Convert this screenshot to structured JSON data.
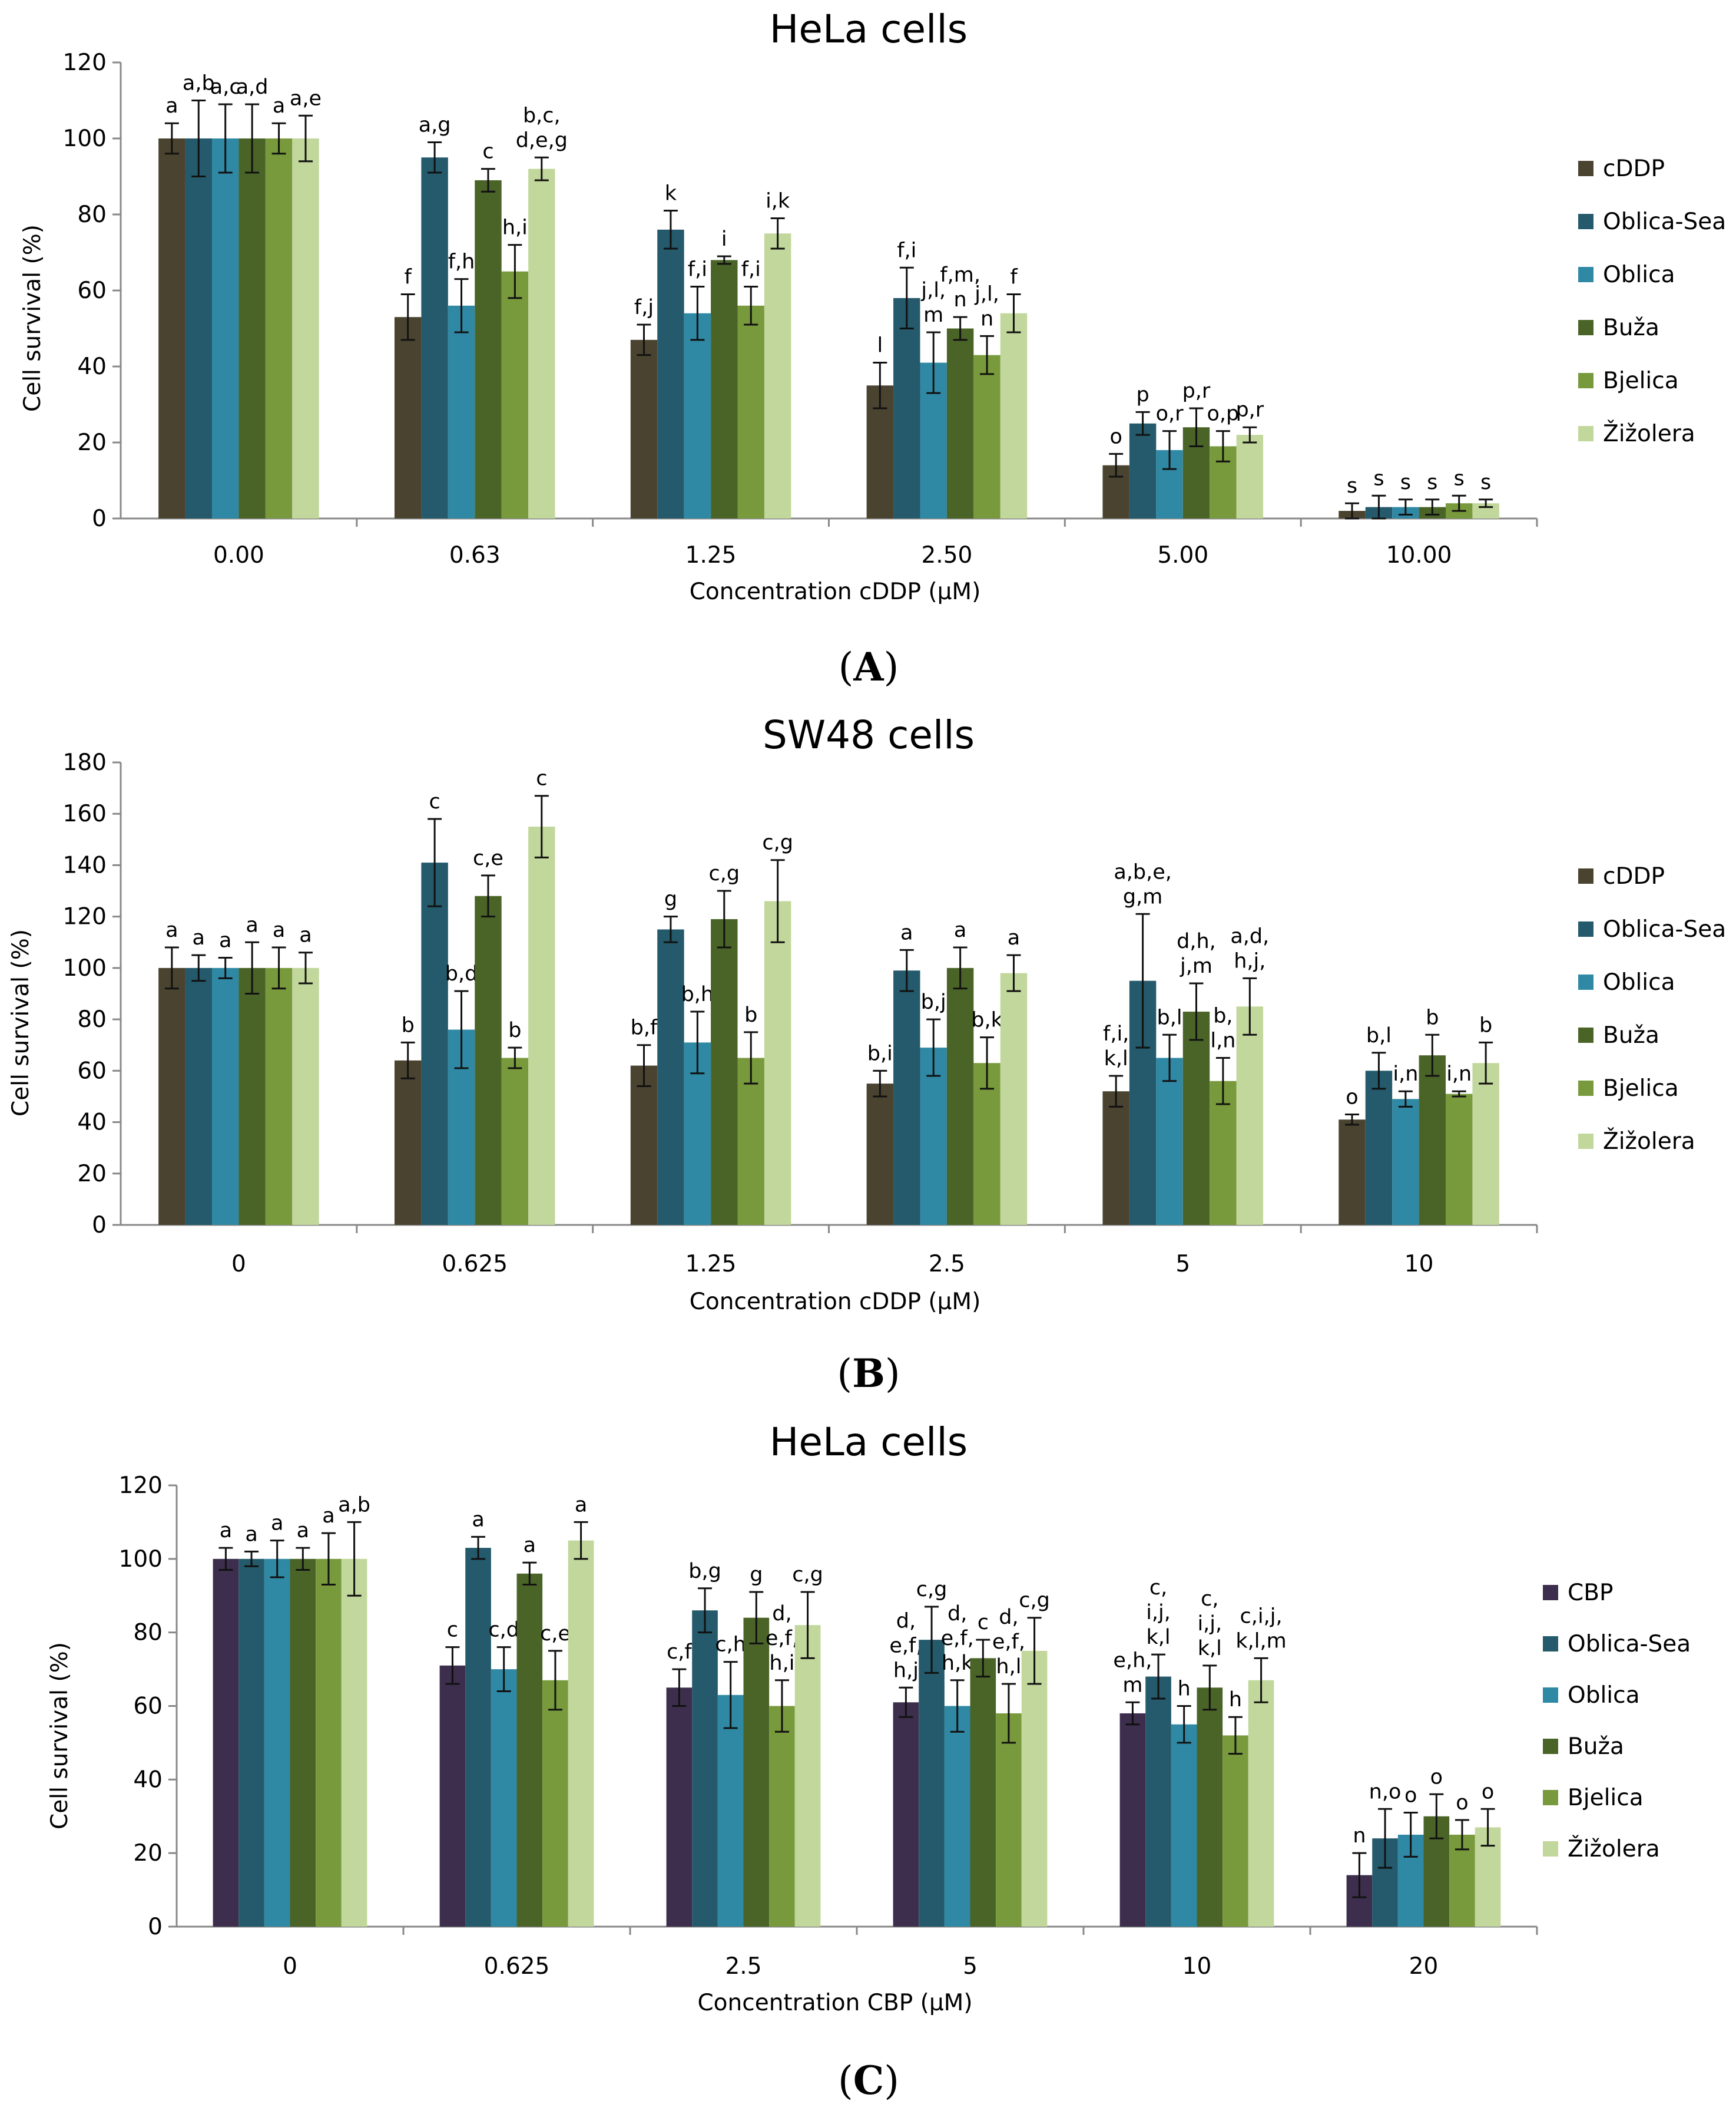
{
  "colors": {
    "cDDP": "#4a4330",
    "CBP": "#3c2e4c",
    "Oblica-Sea": "#245a6b",
    "Oblica": "#3089a4",
    "Buža": "#4a6428",
    "Bjelica": "#789a3c",
    "Žižolera": "#c2d79b"
  },
  "chart_data": [
    {
      "type": "bar",
      "panel": "A",
      "title": "HeLa cells",
      "xlabel": "Concentration cDDP (µM)",
      "ylabel": "Cell survival (%)",
      "ylim": [
        0,
        120
      ],
      "yticks": [
        0,
        20,
        40,
        60,
        80,
        100,
        120
      ],
      "categories": [
        "0.00",
        "0.63",
        "1.25",
        "2.50",
        "5.00",
        "10.00"
      ],
      "series": [
        {
          "name": "cDDP",
          "values": [
            100,
            53,
            47,
            35,
            14,
            2
          ],
          "errors": [
            4,
            6,
            4,
            6,
            3,
            2
          ],
          "labels": [
            "a",
            "f",
            "f,j",
            "l",
            "o",
            "s"
          ]
        },
        {
          "name": "Oblica-Sea",
          "values": [
            100,
            95,
            76,
            58,
            25,
            3
          ],
          "errors": [
            10,
            4,
            5,
            8,
            3,
            3
          ],
          "labels": [
            "a,b",
            "a,g",
            "k",
            "f,i",
            "p",
            "s"
          ]
        },
        {
          "name": "Oblica",
          "values": [
            100,
            56,
            54,
            41,
            18,
            3
          ],
          "errors": [
            9,
            7,
            7,
            8,
            5,
            2
          ],
          "labels": [
            "a,c",
            "f,h",
            "f,i",
            "j,l,\nm",
            "o,r",
            "s"
          ]
        },
        {
          "name": "Buža",
          "values": [
            100,
            89,
            68,
            50,
            24,
            3
          ],
          "errors": [
            9,
            3,
            1,
            3,
            5,
            2
          ],
          "labels": [
            "a,d",
            "c",
            "i",
            "f,m,\nn",
            "p,r",
            "s"
          ]
        },
        {
          "name": "Bjelica",
          "values": [
            100,
            65,
            56,
            43,
            19,
            4
          ],
          "errors": [
            4,
            7,
            5,
            5,
            4,
            2
          ],
          "labels": [
            "a",
            "h,i",
            "f,i",
            "j,l,\nn",
            "o,p",
            "s"
          ]
        },
        {
          "name": "Žižolera",
          "values": [
            100,
            92,
            75,
            54,
            22,
            4
          ],
          "errors": [
            6,
            3,
            4,
            5,
            2,
            1
          ],
          "labels": [
            "a,e",
            "b,c,\nd,e,g",
            "i,k",
            "f",
            "p,r",
            "s"
          ]
        }
      ]
    },
    {
      "type": "bar",
      "panel": "B",
      "title": "SW48 cells",
      "xlabel": "Concentration cDDP (µM)",
      "ylabel": "Cell survival (%)",
      "ylim": [
        0,
        180
      ],
      "yticks": [
        0,
        20,
        40,
        60,
        80,
        100,
        120,
        140,
        160,
        180
      ],
      "categories": [
        "0",
        "0.625",
        "1.25",
        "2.5",
        "5",
        "10"
      ],
      "series": [
        {
          "name": "cDDP",
          "values": [
            100,
            64,
            62,
            55,
            52,
            41
          ],
          "errors": [
            8,
            7,
            8,
            5,
            6,
            2
          ],
          "labels": [
            "a",
            "b",
            "b,f",
            "b,i",
            "f,i,\nk,l",
            "o"
          ]
        },
        {
          "name": "Oblica-Sea",
          "values": [
            100,
            141,
            115,
            99,
            95,
            60
          ],
          "errors": [
            5,
            17,
            5,
            8,
            26,
            7
          ],
          "labels": [
            "a",
            "c",
            "g",
            "a",
            "a,b,e,\ng,m",
            "b,l"
          ]
        },
        {
          "name": "Oblica",
          "values": [
            100,
            76,
            71,
            69,
            65,
            49
          ],
          "errors": [
            4,
            15,
            12,
            11,
            9,
            3
          ],
          "labels": [
            "a",
            "b,d",
            "b,h",
            "b,j",
            "b,l",
            "i,n"
          ]
        },
        {
          "name": "Buža",
          "values": [
            100,
            128,
            119,
            100,
            83,
            66
          ],
          "errors": [
            10,
            8,
            11,
            8,
            11,
            8
          ],
          "labels": [
            "a",
            "c,e",
            "c,g",
            "a",
            "d,h,\nj,m",
            "b"
          ]
        },
        {
          "name": "Bjelica",
          "values": [
            100,
            65,
            65,
            63,
            56,
            51
          ],
          "errors": [
            8,
            4,
            10,
            10,
            9,
            1
          ],
          "labels": [
            "a",
            "b",
            "b",
            "b,k",
            "b,\nl,n",
            "i,n"
          ]
        },
        {
          "name": "Žižolera",
          "values": [
            100,
            155,
            126,
            98,
            85,
            63
          ],
          "errors": [
            6,
            12,
            16,
            7,
            11,
            8
          ],
          "labels": [
            "a",
            "c",
            "c,g",
            "a",
            "a,d,\nh,j,",
            "b"
          ]
        }
      ]
    },
    {
      "type": "bar",
      "panel": "C",
      "title": "HeLa cells",
      "xlabel": "Concentration CBP (µM)",
      "ylabel": "Cell survival (%)",
      "ylim": [
        0,
        120
      ],
      "yticks": [
        0,
        20,
        40,
        60,
        80,
        100,
        120
      ],
      "categories": [
        "0",
        "0.625",
        "2.5",
        "5",
        "10",
        "20"
      ],
      "series": [
        {
          "name": "CBP",
          "values": [
            100,
            71,
            65,
            61,
            58,
            14
          ],
          "errors": [
            3,
            5,
            5,
            4,
            3,
            6
          ],
          "labels": [
            "a",
            "c",
            "c,f",
            "d,\ne,f,\nh,j",
            "e,h,\nm",
            "n"
          ]
        },
        {
          "name": "Oblica-Sea",
          "values": [
            100,
            103,
            86,
            78,
            68,
            24
          ],
          "errors": [
            2,
            3,
            6,
            9,
            6,
            8
          ],
          "labels": [
            "a",
            "a",
            "b,g",
            "c,g",
            "c,\ni,j,\nk,l",
            "n,o"
          ]
        },
        {
          "name": "Oblica",
          "values": [
            100,
            70,
            63,
            60,
            55,
            25
          ],
          "errors": [
            5,
            6,
            9,
            7,
            5,
            6
          ],
          "labels": [
            "a",
            "c,d",
            "c,h",
            "d,\ne,f,\nh,k",
            "h",
            "o"
          ]
        },
        {
          "name": "Buža",
          "values": [
            100,
            96,
            84,
            73,
            65,
            30
          ],
          "errors": [
            3,
            3,
            7,
            5,
            6,
            6
          ],
          "labels": [
            "a",
            "a",
            "g",
            "c",
            "c,\ni,j,\nk,l",
            "o"
          ]
        },
        {
          "name": "Bjelica",
          "values": [
            100,
            67,
            60,
            58,
            52,
            25
          ],
          "errors": [
            7,
            8,
            7,
            8,
            5,
            4
          ],
          "labels": [
            "a",
            "c,e",
            "d,\ne,f,\nh,i",
            "d,\ne,f,\nh,l",
            "h",
            "o"
          ]
        },
        {
          "name": "Žižolera",
          "values": [
            100,
            105,
            82,
            75,
            67,
            27
          ],
          "errors": [
            10,
            5,
            9,
            9,
            6,
            5
          ],
          "labels": [
            "a,b",
            "a",
            "c,g",
            "c,g",
            "c,i,j,\nk,l,m",
            "o"
          ]
        }
      ]
    }
  ]
}
